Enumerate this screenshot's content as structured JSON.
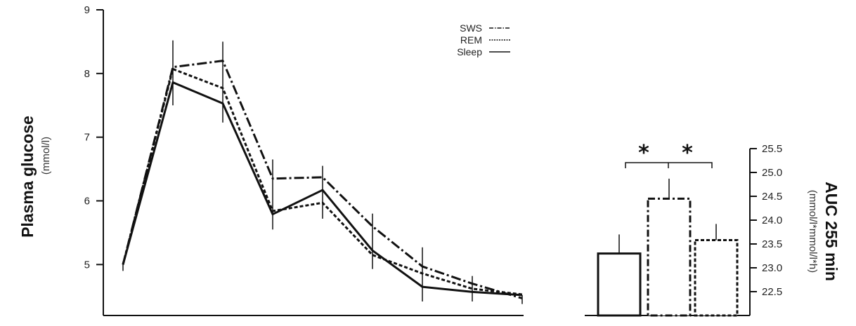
{
  "chart_data": [
    {
      "type": "line",
      "title": "",
      "ylabel": "Plasma glucose",
      "yunit": "(mmol/l)",
      "xlabel": "",
      "ylim": [
        4.2,
        9
      ],
      "yticks": [
        5,
        6,
        7,
        8,
        9
      ],
      "x": [
        0,
        1,
        2,
        3,
        4,
        5,
        6,
        7,
        8
      ],
      "legend_position": "top-right",
      "series": [
        {
          "name": "SWS",
          "style": "dashdot",
          "values": [
            5.0,
            8.1,
            8.2,
            6.35,
            6.37,
            5.6,
            4.97,
            4.7,
            4.47
          ]
        },
        {
          "name": "REM",
          "style": "dotted",
          "values": [
            5.0,
            8.07,
            7.77,
            5.84,
            5.97,
            5.15,
            4.86,
            4.62,
            4.53
          ]
        },
        {
          "name": "Sleep",
          "style": "solid",
          "values": [
            5.0,
            7.86,
            7.53,
            5.79,
            6.17,
            5.22,
            4.65,
            4.57,
            4.52
          ]
        }
      ],
      "error_bar_tops": [
        5.0,
        8.52,
        8.5,
        6.65,
        6.55,
        5.8,
        5.27,
        4.82,
        4.52
      ],
      "error_bar_bottoms": [
        4.9,
        7.5,
        7.23,
        5.55,
        5.72,
        4.93,
        4.42,
        4.42,
        4.38
      ]
    },
    {
      "type": "bar",
      "title": "",
      "ylabel": "AUC 255 min",
      "yunit": "(mmol/l*mmol/l*h)",
      "ylim": [
        22.0,
        25.5
      ],
      "yticks": [
        "22.5",
        "23.0",
        "23.5",
        "24.0",
        "24.5",
        "25.0",
        "25.5"
      ],
      "categories": [
        "Sleep",
        "SWS",
        "REM"
      ],
      "values": [
        23.3,
        24.45,
        23.58
      ],
      "error_tops": [
        23.7,
        24.87,
        23.92
      ],
      "significance": [
        "*",
        "*"
      ]
    }
  ]
}
